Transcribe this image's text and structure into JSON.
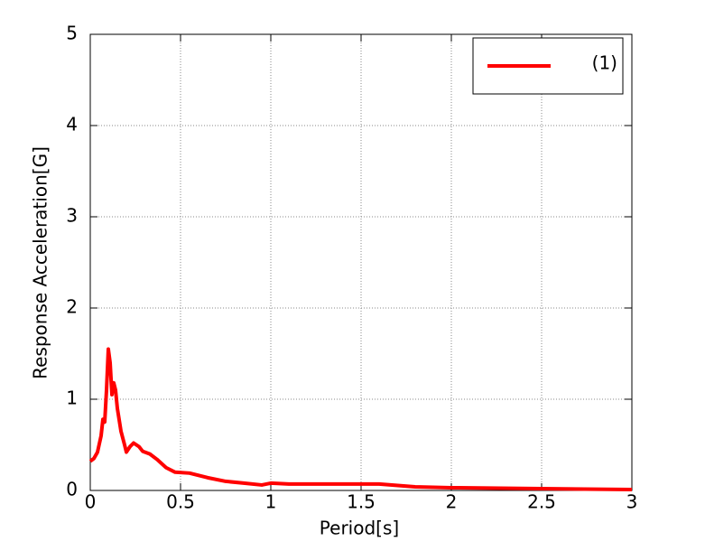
{
  "chart_data": {
    "type": "line",
    "x_label": "Period[s]",
    "y_label": "Response Acceleration[G]",
    "x": [
      0,
      0.02,
      0.04,
      0.06,
      0.07,
      0.08,
      0.09,
      0.1,
      0.11,
      0.12,
      0.13,
      0.14,
      0.15,
      0.17,
      0.19,
      0.2,
      0.22,
      0.24,
      0.27,
      0.29,
      0.33,
      0.37,
      0.42,
      0.47,
      0.55,
      0.65,
      0.75,
      0.85,
      0.95,
      1.0,
      1.1,
      1.3,
      1.5,
      1.6,
      1.8,
      2.0,
      2.5,
      3.0
    ],
    "series": [
      {
        "name": "(1)",
        "color": "#ff0000",
        "values": [
          0.32,
          0.35,
          0.42,
          0.6,
          0.78,
          0.75,
          1.1,
          1.55,
          1.4,
          1.05,
          1.18,
          1.1,
          0.9,
          0.65,
          0.5,
          0.42,
          0.48,
          0.52,
          0.48,
          0.43,
          0.4,
          0.34,
          0.25,
          0.2,
          0.19,
          0.14,
          0.1,
          0.08,
          0.06,
          0.08,
          0.07,
          0.07,
          0.07,
          0.07,
          0.04,
          0.03,
          0.02,
          0.01
        ]
      }
    ],
    "xlim": [
      0,
      3
    ],
    "xticks": [
      0,
      0.5,
      1,
      1.5,
      2,
      2.5,
      3
    ],
    "ylim": [
      0,
      5
    ],
    "yticks": [
      0,
      1,
      2,
      3,
      4,
      5
    ],
    "grid": true,
    "legend": "upper right"
  }
}
